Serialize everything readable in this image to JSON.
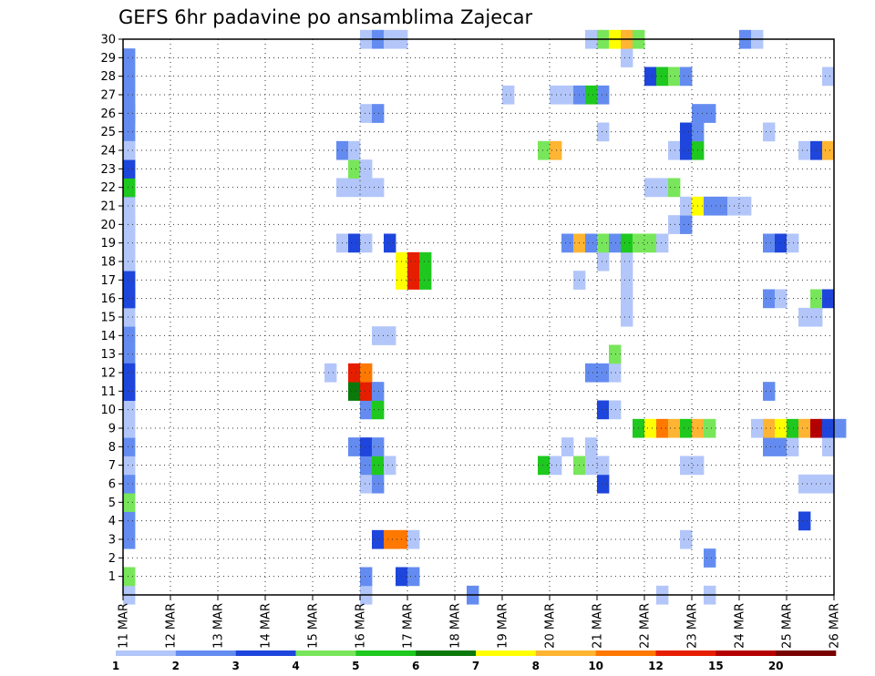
{
  "chart_data": {
    "type": "heatmap",
    "title": "GEFS 6hr padavine po ansamblima Zajecar",
    "xlabel": "",
    "ylabel": "",
    "x_tick_labels": [
      "11 MAR",
      "12 MAR",
      "13 MAR",
      "14 MAR",
      "15 MAR",
      "16 MAR",
      "17 MAR",
      "18 MAR",
      "19 MAR",
      "20 MAR",
      "21 MAR",
      "22 MAR",
      "23 MAR",
      "24 MAR",
      "25 MAR",
      "26 MAR"
    ],
    "y_tick_labels": [
      "1",
      "2",
      "3",
      "4",
      "5",
      "6",
      "7",
      "8",
      "9",
      "10",
      "11",
      "12",
      "13",
      "14",
      "15",
      "16",
      "17",
      "18",
      "19",
      "20",
      "21",
      "22",
      "23",
      "24",
      "25",
      "26",
      "27",
      "28",
      "29",
      "30"
    ],
    "y_range": [
      0,
      30
    ],
    "steps_per_day": 4,
    "grid": true,
    "legend_position": "bottom",
    "colorbar": {
      "labels": [
        "1",
        "2",
        "3",
        "4",
        "5",
        "6",
        "7",
        "8",
        "10",
        "12",
        "15",
        "20"
      ],
      "colors": [
        "#b3c6fa",
        "#648cf0",
        "#1e46dc",
        "#78e65a",
        "#1ec81e",
        "#0a780a",
        "#ffff00",
        "#ffb432",
        "#ff7800",
        "#e61e00",
        "#b40000",
        "#780000"
      ]
    },
    "cells": [
      {
        "m": 0,
        "t": 0,
        "c": 1
      },
      {
        "m": 1,
        "t": 0,
        "c": 4
      },
      {
        "m": 3,
        "t": 0,
        "c": 2
      },
      {
        "m": 4,
        "t": 0,
        "c": 2
      },
      {
        "m": 5,
        "t": 0,
        "c": 4
      },
      {
        "m": 6,
        "t": 0,
        "c": 2
      },
      {
        "m": 7,
        "t": 0,
        "c": 1
      },
      {
        "m": 8,
        "t": 0,
        "c": 2
      },
      {
        "m": 9,
        "t": 0,
        "c": 1
      },
      {
        "m": 10,
        "t": 0,
        "c": 1
      },
      {
        "m": 11,
        "t": 0,
        "c": 3
      },
      {
        "m": 12,
        "t": 0,
        "c": 2
      },
      {
        "m": 13,
        "t": 0,
        "c": 2
      },
      {
        "m": 14,
        "t": 0,
        "c": 2
      },
      {
        "m": 15,
        "t": 0,
        "c": 1
      },
      {
        "m": 16,
        "t": 0,
        "c": 3
      },
      {
        "m": 17,
        "t": 0,
        "c": 2
      },
      {
        "m": 18,
        "t": 0,
        "c": 1
      },
      {
        "m": 19,
        "t": 0,
        "c": 1
      },
      {
        "m": 20,
        "t": 0,
        "c": 1
      },
      {
        "m": 21,
        "t": 0,
        "c": 1
      },
      {
        "m": 22,
        "t": 0,
        "c": 3
      },
      {
        "m": 23,
        "t": 0,
        "c": 1
      },
      {
        "m": 24,
        "t": 0,
        "c": 1
      },
      {
        "m": 25,
        "t": 0,
        "c": 2
      },
      {
        "m": 26,
        "t": 0,
        "c": 2
      },
      {
        "m": 28,
        "t": 0,
        "c": 2
      },
      {
        "m": 0,
        "t": 20,
        "c": 1
      },
      {
        "m": 0,
        "t": 29,
        "c": 2
      },
      {
        "m": 0,
        "t": 45,
        "c": 1
      },
      {
        "m": 0,
        "t": 49,
        "c": 1
      },
      {
        "m": 1,
        "t": 20,
        "c": 2
      },
      {
        "m": 1,
        "t": 23,
        "c": 3
      },
      {
        "m": 1,
        "t": 24,
        "c": 2
      },
      {
        "m": 2,
        "t": 49,
        "c": 2
      },
      {
        "m": 3,
        "t": 21,
        "c": 3
      },
      {
        "m": 3,
        "t": 22,
        "c": 9
      },
      {
        "m": 3,
        "t": 23,
        "c": 9
      },
      {
        "m": 3,
        "t": 24,
        "c": 1
      },
      {
        "m": 3,
        "t": 47,
        "c": 1
      },
      {
        "m": 4,
        "t": 57,
        "c": 3
      },
      {
        "m": 6,
        "t": 20,
        "c": 1
      },
      {
        "m": 6,
        "t": 21,
        "c": 2
      },
      {
        "m": 6,
        "t": 40,
        "c": 3
      },
      {
        "m": 6,
        "t": 57,
        "c": 1
      },
      {
        "m": 6,
        "t": 58,
        "c": 1
      },
      {
        "m": 6,
        "t": 59,
        "c": 1
      },
      {
        "m": 7,
        "t": 20,
        "c": 2
      },
      {
        "m": 7,
        "t": 21,
        "c": 5
      },
      {
        "m": 7,
        "t": 22,
        "c": 1
      },
      {
        "m": 7,
        "t": 35,
        "c": 5
      },
      {
        "m": 7,
        "t": 36,
        "c": 1
      },
      {
        "m": 7,
        "t": 38,
        "c": 4
      },
      {
        "m": 7,
        "t": 39,
        "c": 1
      },
      {
        "m": 7,
        "t": 40,
        "c": 1
      },
      {
        "m": 7,
        "t": 47,
        "c": 1
      },
      {
        "m": 7,
        "t": 48,
        "c": 1
      },
      {
        "m": 8,
        "t": 19,
        "c": 2
      },
      {
        "m": 8,
        "t": 20,
        "c": 3
      },
      {
        "m": 8,
        "t": 21,
        "c": 2
      },
      {
        "m": 8,
        "t": 37,
        "c": 1
      },
      {
        "m": 8,
        "t": 39,
        "c": 1
      },
      {
        "m": 8,
        "t": 54,
        "c": 2
      },
      {
        "m": 8,
        "t": 55,
        "c": 2
      },
      {
        "m": 8,
        "t": 56,
        "c": 1
      },
      {
        "m": 8,
        "t": 59,
        "c": 1
      },
      {
        "m": 9,
        "t": 43,
        "c": 5
      },
      {
        "m": 9,
        "t": 44,
        "c": 7
      },
      {
        "m": 9,
        "t": 45,
        "c": 9
      },
      {
        "m": 9,
        "t": 46,
        "c": 8
      },
      {
        "m": 9,
        "t": 47,
        "c": 5
      },
      {
        "m": 9,
        "t": 48,
        "c": 8
      },
      {
        "m": 9,
        "t": 49,
        "c": 4
      },
      {
        "m": 9,
        "t": 53,
        "c": 1
      },
      {
        "m": 9,
        "t": 54,
        "c": 8
      },
      {
        "m": 9,
        "t": 55,
        "c": 7
      },
      {
        "m": 9,
        "t": 56,
        "c": 5
      },
      {
        "m": 9,
        "t": 57,
        "c": 8
      },
      {
        "m": 9,
        "t": 58,
        "c": 11
      },
      {
        "m": 9,
        "t": 59,
        "c": 3
      },
      {
        "m": 9,
        "t": 60,
        "c": 2
      },
      {
        "m": 10,
        "t": 20,
        "c": 2
      },
      {
        "m": 10,
        "t": 21,
        "c": 5
      },
      {
        "m": 10,
        "t": 40,
        "c": 3
      },
      {
        "m": 10,
        "t": 41,
        "c": 1
      },
      {
        "m": 11,
        "t": 0,
        "c": 3
      },
      {
        "m": 11,
        "t": 19,
        "c": 6
      },
      {
        "m": 11,
        "t": 20,
        "c": 10
      },
      {
        "m": 11,
        "t": 21,
        "c": 2
      },
      {
        "m": 11,
        "t": 54,
        "c": 2
      },
      {
        "m": 12,
        "t": 0,
        "c": 3
      },
      {
        "m": 12,
        "t": 17,
        "c": 1
      },
      {
        "m": 12,
        "t": 19,
        "c": 10
      },
      {
        "m": 12,
        "t": 20,
        "c": 9
      },
      {
        "m": 12,
        "t": 39,
        "c": 2
      },
      {
        "m": 12,
        "t": 40,
        "c": 2
      },
      {
        "m": 12,
        "t": 41,
        "c": 1
      },
      {
        "m": 13,
        "t": 41,
        "c": 4
      },
      {
        "m": 14,
        "t": 21,
        "c": 1
      },
      {
        "m": 14,
        "t": 22,
        "c": 1
      },
      {
        "m": 15,
        "t": 42,
        "c": 1
      },
      {
        "m": 15,
        "t": 57,
        "c": 1
      },
      {
        "m": 15,
        "t": 58,
        "c": 1
      },
      {
        "m": 16,
        "t": 0,
        "c": 3
      },
      {
        "m": 16,
        "t": 42,
        "c": 1
      },
      {
        "m": 16,
        "t": 54,
        "c": 2
      },
      {
        "m": 16,
        "t": 55,
        "c": 1
      },
      {
        "m": 16,
        "t": 58,
        "c": 4
      },
      {
        "m": 16,
        "t": 59,
        "c": 3
      },
      {
        "m": 17,
        "t": 0,
        "c": 3
      },
      {
        "m": 17,
        "t": 23,
        "c": 7
      },
      {
        "m": 17,
        "t": 24,
        "c": 10
      },
      {
        "m": 17,
        "t": 25,
        "c": 5
      },
      {
        "m": 17,
        "t": 38,
        "c": 1
      },
      {
        "m": 17,
        "t": 42,
        "c": 1
      },
      {
        "m": 18,
        "t": 0,
        "c": 1
      },
      {
        "m": 18,
        "t": 23,
        "c": 7
      },
      {
        "m": 18,
        "t": 24,
        "c": 10
      },
      {
        "m": 18,
        "t": 25,
        "c": 5
      },
      {
        "m": 18,
        "t": 40,
        "c": 1
      },
      {
        "m": 18,
        "t": 42,
        "c": 1
      },
      {
        "m": 19,
        "t": 0,
        "c": 1
      },
      {
        "m": 19,
        "t": 18,
        "c": 1
      },
      {
        "m": 19,
        "t": 19,
        "c": 3
      },
      {
        "m": 19,
        "t": 20,
        "c": 1
      },
      {
        "m": 19,
        "t": 22,
        "c": 3
      },
      {
        "m": 19,
        "t": 37,
        "c": 2
      },
      {
        "m": 19,
        "t": 38,
        "c": 8
      },
      {
        "m": 19,
        "t": 39,
        "c": 2
      },
      {
        "m": 19,
        "t": 40,
        "c": 4
      },
      {
        "m": 19,
        "t": 41,
        "c": 2
      },
      {
        "m": 19,
        "t": 42,
        "c": 5
      },
      {
        "m": 19,
        "t": 43,
        "c": 4
      },
      {
        "m": 19,
        "t": 44,
        "c": 4
      },
      {
        "m": 19,
        "t": 45,
        "c": 1
      },
      {
        "m": 19,
        "t": 54,
        "c": 2
      },
      {
        "m": 19,
        "t": 55,
        "c": 3
      },
      {
        "m": 19,
        "t": 56,
        "c": 1
      },
      {
        "m": 20,
        "t": 0,
        "c": 1
      },
      {
        "m": 20,
        "t": 46,
        "c": 1
      },
      {
        "m": 20,
        "t": 47,
        "c": 2
      },
      {
        "m": 21,
        "t": 47,
        "c": 1
      },
      {
        "m": 21,
        "t": 48,
        "c": 7
      },
      {
        "m": 21,
        "t": 49,
        "c": 2
      },
      {
        "m": 21,
        "t": 50,
        "c": 2
      },
      {
        "m": 21,
        "t": 51,
        "c": 1
      },
      {
        "m": 21,
        "t": 52,
        "c": 1
      },
      {
        "m": 22,
        "t": 0,
        "c": 5
      },
      {
        "m": 22,
        "t": 18,
        "c": 1
      },
      {
        "m": 22,
        "t": 19,
        "c": 1
      },
      {
        "m": 22,
        "t": 20,
        "c": 1
      },
      {
        "m": 22,
        "t": 21,
        "c": 1
      },
      {
        "m": 22,
        "t": 44,
        "c": 1
      },
      {
        "m": 22,
        "t": 45,
        "c": 1
      },
      {
        "m": 22,
        "t": 46,
        "c": 4
      },
      {
        "m": 23,
        "t": 0,
        "c": 3
      },
      {
        "m": 23,
        "t": 19,
        "c": 4
      },
      {
        "m": 23,
        "t": 20,
        "c": 1
      },
      {
        "m": 24,
        "t": 0,
        "c": 1
      },
      {
        "m": 24,
        "t": 18,
        "c": 2
      },
      {
        "m": 24,
        "t": 19,
        "c": 1
      },
      {
        "m": 24,
        "t": 35,
        "c": 4
      },
      {
        "m": 24,
        "t": 36,
        "c": 8
      },
      {
        "m": 24,
        "t": 46,
        "c": 1
      },
      {
        "m": 24,
        "t": 47,
        "c": 3
      },
      {
        "m": 24,
        "t": 48,
        "c": 5
      },
      {
        "m": 24,
        "t": 57,
        "c": 1
      },
      {
        "m": 24,
        "t": 58,
        "c": 3
      },
      {
        "m": 24,
        "t": 59,
        "c": 8
      },
      {
        "m": 25,
        "t": 40,
        "c": 1
      },
      {
        "m": 25,
        "t": 47,
        "c": 3
      },
      {
        "m": 25,
        "t": 48,
        "c": 2
      },
      {
        "m": 25,
        "t": 54,
        "c": 1
      },
      {
        "m": 26,
        "t": 0,
        "c": 2
      },
      {
        "m": 26,
        "t": 20,
        "c": 1
      },
      {
        "m": 26,
        "t": 21,
        "c": 2
      },
      {
        "m": 26,
        "t": 48,
        "c": 2
      },
      {
        "m": 26,
        "t": 49,
        "c": 2
      },
      {
        "m": 27,
        "t": 0,
        "c": 2
      },
      {
        "m": 27,
        "t": 32,
        "c": 1
      },
      {
        "m": 27,
        "t": 36,
        "c": 1
      },
      {
        "m": 27,
        "t": 37,
        "c": 1
      },
      {
        "m": 27,
        "t": 38,
        "c": 2
      },
      {
        "m": 27,
        "t": 39,
        "c": 5
      },
      {
        "m": 27,
        "t": 40,
        "c": 2
      },
      {
        "m": 28,
        "t": 44,
        "c": 3
      },
      {
        "m": 28,
        "t": 45,
        "c": 5
      },
      {
        "m": 28,
        "t": 46,
        "c": 4
      },
      {
        "m": 28,
        "t": 47,
        "c": 2
      },
      {
        "m": 28,
        "t": 59,
        "c": 1
      },
      {
        "m": 29,
        "t": 0,
        "c": 2
      },
      {
        "m": 29,
        "t": 42,
        "c": 1
      },
      {
        "m": 30,
        "t": 20,
        "c": 1
      },
      {
        "m": 30,
        "t": 21,
        "c": 2
      },
      {
        "m": 30,
        "t": 22,
        "c": 1
      },
      {
        "m": 30,
        "t": 23,
        "c": 1
      },
      {
        "m": 30,
        "t": 39,
        "c": 1
      },
      {
        "m": 30,
        "t": 40,
        "c": 4
      },
      {
        "m": 30,
        "t": 41,
        "c": 7
      },
      {
        "m": 30,
        "t": 42,
        "c": 8
      },
      {
        "m": 30,
        "t": 43,
        "c": 4
      },
      {
        "m": 30,
        "t": 52,
        "c": 2
      },
      {
        "m": 30,
        "t": 53,
        "c": 1
      }
    ]
  }
}
